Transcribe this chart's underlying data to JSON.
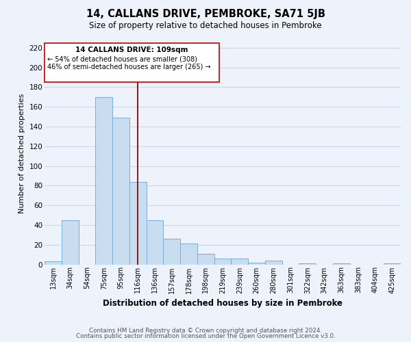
{
  "title": "14, CALLANS DRIVE, PEMBROKE, SA71 5JB",
  "subtitle": "Size of property relative to detached houses in Pembroke",
  "xlabel": "Distribution of detached houses by size in Pembroke",
  "ylabel": "Number of detached properties",
  "footer_line1": "Contains HM Land Registry data © Crown copyright and database right 2024.",
  "footer_line2": "Contains public sector information licensed under the Open Government Licence v3.0.",
  "bin_labels": [
    "13sqm",
    "34sqm",
    "54sqm",
    "75sqm",
    "95sqm",
    "116sqm",
    "136sqm",
    "157sqm",
    "178sqm",
    "198sqm",
    "219sqm",
    "239sqm",
    "260sqm",
    "280sqm",
    "301sqm",
    "322sqm",
    "342sqm",
    "363sqm",
    "383sqm",
    "404sqm",
    "425sqm"
  ],
  "bar_values": [
    3,
    45,
    0,
    170,
    149,
    84,
    45,
    26,
    21,
    11,
    6,
    6,
    2,
    4,
    0,
    1,
    0,
    1,
    0,
    0,
    1
  ],
  "bar_color": "#c8ddf0",
  "bar_edge_color": "#7aadd4",
  "marker_label": "14 CALLANS DRIVE: 109sqm",
  "annotation_line1": "← 54% of detached houses are smaller (308)",
  "annotation_line2": "46% of semi-detached houses are larger (265) →",
  "vline_x_bin": 5.0,
  "vline_color": "#8b0000",
  "ylim": [
    0,
    225
  ],
  "yticks": [
    0,
    20,
    40,
    60,
    80,
    100,
    120,
    140,
    160,
    180,
    200,
    220
  ],
  "box_color": "#c00000",
  "grid_color": "#c8d8ec",
  "background_color": "#eef2fb"
}
